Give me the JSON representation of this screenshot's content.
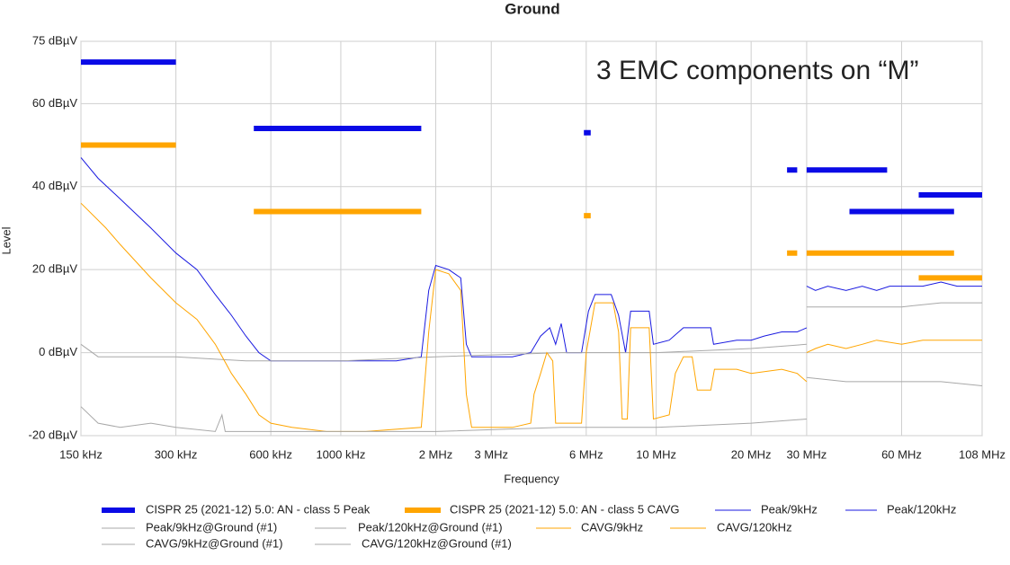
{
  "chart_data": {
    "type": "line",
    "title": "Ground",
    "x_label": "Frequency",
    "y_label": "Level",
    "annotation": "3 EMC components on “M”",
    "x_scale": "log",
    "grid": true,
    "xlim": [
      0.15,
      108
    ],
    "ylim": [
      -20,
      75
    ],
    "xticks": [
      {
        "value": 0.15,
        "label": "150 kHz"
      },
      {
        "value": 0.3,
        "label": "300 kHz"
      },
      {
        "value": 0.6,
        "label": "600 kHz"
      },
      {
        "value": 1.0,
        "label": "1000 kHz"
      },
      {
        "value": 2,
        "label": "2 MHz"
      },
      {
        "value": 3,
        "label": "3 MHz"
      },
      {
        "value": 6,
        "label": "6 MHz"
      },
      {
        "value": 10,
        "label": "10 MHz"
      },
      {
        "value": 20,
        "label": "20 MHz"
      },
      {
        "value": 30,
        "label": "30 MHz"
      },
      {
        "value": 60,
        "label": "60 MHz"
      },
      {
        "value": 108,
        "label": "108 MHz"
      }
    ],
    "yticks": [
      {
        "value": -20,
        "label": "-20 dBµV"
      },
      {
        "value": 0,
        "label": "0 dBµV"
      },
      {
        "value": 20,
        "label": "20 dBµV"
      },
      {
        "value": 40,
        "label": "40 dBµV"
      },
      {
        "value": 60,
        "label": "60 dBµV"
      },
      {
        "value": 75,
        "label": "75 dBµV"
      }
    ],
    "series": [
      {
        "name": "CISPR 25 (2021-12) 5.0: AN - class 5 Peak",
        "color": "#0a0ae6",
        "line_width": 6,
        "x": [
          0.15,
          0.3,
          0.4,
          0.53,
          1.8,
          3,
          5.9,
          6.2,
          10,
          26,
          28,
          29,
          30,
          54,
          40,
          41,
          88,
          60,
          68,
          108
        ],
        "values": [
          70,
          70,
          null,
          54,
          54,
          null,
          53,
          53,
          null,
          44,
          44,
          null,
          44,
          44,
          null,
          34,
          34,
          null,
          38,
          38
        ]
      },
      {
        "name": "CISPR 25 (2021-12) 5.0: AN - class 5 CAVG",
        "color": "#ffa500",
        "line_width": 6,
        "x": [
          0.15,
          0.3,
          0.4,
          0.53,
          1.8,
          3,
          5.9,
          6.2,
          10,
          26,
          28,
          29,
          30,
          88,
          60,
          68,
          108
        ],
        "values": [
          50,
          50,
          null,
          34,
          34,
          null,
          33,
          33,
          null,
          24,
          24,
          null,
          24,
          24,
          null,
          18,
          18
        ]
      },
      {
        "name": "Peak/9kHz",
        "color": "#1a1ae0",
        "line_width": 1,
        "x": [
          0.15,
          0.17,
          0.2,
          0.25,
          0.3,
          0.35,
          0.4,
          0.45,
          0.5,
          0.55,
          0.6,
          0.8,
          1.0,
          1.5,
          1.8,
          1.9,
          2.0,
          2.2,
          2.4,
          2.5,
          2.6,
          3,
          3.5,
          4,
          4.3,
          4.6,
          4.8,
          5.0,
          5.2,
          5.8,
          6.1,
          6.4,
          7.2,
          7.6,
          8.0,
          8.3,
          9.5,
          9.8,
          11,
          12.2,
          12.5,
          14.9,
          15.2,
          18,
          20,
          22,
          25,
          28,
          30
        ],
        "values": [
          47,
          42,
          37,
          30,
          24,
          20,
          14,
          9,
          4,
          0,
          -2,
          -2,
          -2,
          -2,
          -1,
          15,
          21,
          20,
          18,
          2,
          -1,
          -1,
          -1,
          0,
          4,
          6,
          2,
          7,
          0,
          0,
          10,
          14,
          14,
          9,
          0,
          10,
          10,
          2,
          3,
          6,
          6,
          6,
          2,
          3,
          3,
          4,
          5,
          5,
          6
        ]
      },
      {
        "name": "Peak/120kHz",
        "color": "#1a1ae0",
        "line_width": 1,
        "x": [
          30,
          32,
          35,
          40,
          45,
          50,
          55,
          60,
          70,
          80,
          90,
          108
        ],
        "values": [
          16,
          15,
          16,
          15,
          16,
          15,
          16,
          16,
          16,
          17,
          16,
          16
        ]
      },
      {
        "name": "Peak/9kHz@Ground (#1)",
        "color": "#a8a8a8",
        "line_width": 1,
        "x": [
          0.15,
          0.17,
          0.3,
          0.5,
          1,
          2,
          5,
          10,
          20,
          30
        ],
        "values": [
          2,
          -1,
          -1,
          -2,
          -2,
          -1,
          0,
          0,
          1,
          2
        ]
      },
      {
        "name": "Peak/120kHz@Ground (#1)",
        "color": "#a8a8a8",
        "line_width": 1,
        "x": [
          30,
          40,
          60,
          80,
          108
        ],
        "values": [
          11,
          11,
          11,
          12,
          12
        ]
      },
      {
        "name": "CAVG/9kHz",
        "color": "#ffa500",
        "line_width": 1,
        "x": [
          0.15,
          0.18,
          0.2,
          0.25,
          0.3,
          0.35,
          0.4,
          0.45,
          0.5,
          0.55,
          0.6,
          0.7,
          0.9,
          1.2,
          1.8,
          1.9,
          2.0,
          2.2,
          2.4,
          2.5,
          2.6,
          3.5,
          4.0,
          4.1,
          4.3,
          4.5,
          4.7,
          4.8,
          5.8,
          6.0,
          6.4,
          7.3,
          7.6,
          7.8,
          8.1,
          8.3,
          9.5,
          9.8,
          11,
          11.5,
          12.2,
          13,
          13.5,
          14.9,
          15.3,
          18,
          20,
          25,
          28,
          30
        ],
        "values": [
          36,
          30,
          26,
          18,
          12,
          8,
          2,
          -5,
          -10,
          -15,
          -17,
          -18,
          -19,
          -19,
          -18,
          5,
          20,
          19,
          15,
          -10,
          -18,
          -18,
          -17,
          -10,
          -5,
          0,
          -2,
          -17,
          -17,
          0,
          12,
          12,
          5,
          -16,
          -16,
          6,
          6,
          -16,
          -15,
          -5,
          -1,
          -1,
          -9,
          -9,
          -4,
          -4,
          -5,
          -4,
          -5,
          -7
        ]
      },
      {
        "name": "CAVG/120kHz",
        "color": "#ffa500",
        "line_width": 1,
        "x": [
          30,
          32,
          35,
          40,
          45,
          50,
          60,
          70,
          80,
          90,
          108
        ],
        "values": [
          0,
          1,
          2,
          1,
          2,
          3,
          2,
          3,
          3,
          3,
          3
        ]
      },
      {
        "name": "CAVG/9kHz@Ground (#1)",
        "color": "#a8a8a8",
        "line_width": 1,
        "x": [
          0.15,
          0.17,
          0.2,
          0.25,
          0.3,
          0.4,
          0.42,
          0.43,
          0.6,
          1,
          2,
          5,
          10,
          20,
          30
        ],
        "values": [
          -13,
          -17,
          -18,
          -17,
          -18,
          -19,
          -15,
          -19,
          -19,
          -19,
          -19,
          -18,
          -18,
          -17,
          -16
        ]
      },
      {
        "name": "CAVG/120kHz@Ground (#1)",
        "color": "#a8a8a8",
        "line_width": 1,
        "x": [
          30,
          40,
          60,
          80,
          108
        ],
        "values": [
          -6,
          -7,
          -7,
          -7,
          -8
        ]
      }
    ]
  }
}
